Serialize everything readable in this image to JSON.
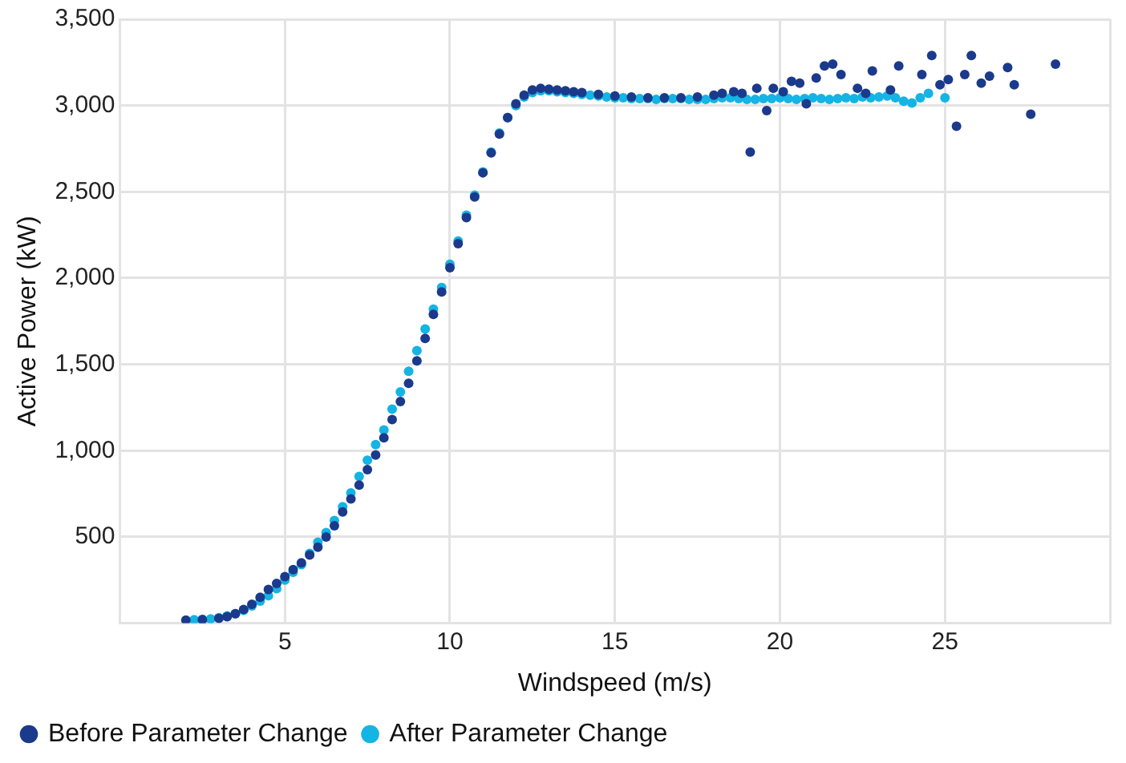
{
  "chart_data": {
    "type": "scatter",
    "xlabel": "Windspeed (m/s)",
    "ylabel": "Active Power (kW)",
    "xlim": [
      0,
      30
    ],
    "xticks": [
      {
        "value": 0,
        "label": null
      },
      5,
      10,
      15,
      20,
      25,
      {
        "value": 30,
        "label": null
      }
    ],
    "ylim": [
      0,
      3500
    ],
    "yticks": [
      {
        "value": 0,
        "label": null
      },
      {
        "value": 500,
        "label": "500"
      },
      {
        "value": 1000,
        "label": "1,000"
      },
      {
        "value": 1500,
        "label": "1,500"
      },
      {
        "value": 2000,
        "label": "2,000"
      },
      {
        "value": 2500,
        "label": "2,500"
      },
      {
        "value": 3000,
        "label": "3,000"
      },
      {
        "value": 3500,
        "label": "3,500"
      }
    ],
    "grid": true,
    "legend": "bottom left",
    "marker": "circle",
    "series": [
      {
        "name": "Before Parameter Change",
        "color": "#1b3a8c",
        "x": [
          2.0,
          2.5,
          3.0,
          3.25,
          3.5,
          3.75,
          4.0,
          4.25,
          4.5,
          4.75,
          5.0,
          5.25,
          5.5,
          5.75,
          6.0,
          6.25,
          6.5,
          6.75,
          7.0,
          7.25,
          7.5,
          7.75,
          8.0,
          8.25,
          8.5,
          8.75,
          9.0,
          9.25,
          9.5,
          9.75,
          10.0,
          10.25,
          10.5,
          10.75,
          11.0,
          11.25,
          11.5,
          11.75,
          12.0,
          12.25,
          12.5,
          12.75,
          13.0,
          13.25,
          13.5,
          13.75,
          14.0,
          14.5,
          15.0,
          15.5,
          16.0,
          16.5,
          17.0,
          17.5,
          18.0,
          18.25,
          18.6,
          18.85,
          19.1,
          19.3,
          19.6,
          19.8,
          20.1,
          20.35,
          20.6,
          20.8,
          21.1,
          21.35,
          21.6,
          21.85,
          22.35,
          22.6,
          22.8,
          23.35,
          23.6,
          24.3,
          24.6,
          24.85,
          25.1,
          25.35,
          25.6,
          25.8,
          26.1,
          26.35,
          26.9,
          27.1,
          27.6,
          28.35
        ],
        "values": [
          18,
          20,
          28,
          38,
          55,
          80,
          110,
          150,
          195,
          230,
          270,
          310,
          350,
          395,
          440,
          500,
          565,
          645,
          720,
          800,
          890,
          975,
          1075,
          1180,
          1285,
          1390,
          1520,
          1650,
          1790,
          1920,
          2060,
          2200,
          2350,
          2470,
          2610,
          2725,
          2835,
          2930,
          3010,
          3060,
          3090,
          3100,
          3095,
          3090,
          3085,
          3080,
          3075,
          3065,
          3055,
          3050,
          3045,
          3045,
          3045,
          3050,
          3060,
          3070,
          3080,
          3070,
          2730,
          3100,
          2970,
          3100,
          3080,
          3140,
          3130,
          3010,
          3160,
          3230,
          3240,
          3180,
          3100,
          3070,
          3200,
          3090,
          3230,
          3180,
          3290,
          3120,
          3150,
          2880,
          3180,
          3290,
          3130,
          3170,
          3220,
          3120,
          2950,
          3240
        ]
      },
      {
        "name": "After Parameter Change",
        "color": "#14b4e4",
        "x": [
          2.25,
          2.5,
          2.75,
          3.0,
          3.25,
          3.5,
          3.75,
          4.0,
          4.25,
          4.5,
          4.75,
          5.0,
          5.25,
          5.5,
          5.75,
          6.0,
          6.25,
          6.5,
          6.75,
          7.0,
          7.25,
          7.5,
          7.75,
          8.0,
          8.25,
          8.5,
          8.75,
          9.0,
          9.25,
          9.5,
          9.75,
          10.0,
          10.25,
          10.5,
          10.75,
          11.0,
          11.25,
          11.5,
          11.75,
          12.0,
          12.25,
          12.5,
          12.75,
          13.0,
          13.25,
          13.5,
          13.75,
          14.0,
          14.25,
          14.5,
          14.75,
          15.0,
          15.25,
          15.5,
          15.75,
          16.0,
          16.25,
          16.5,
          16.75,
          17.0,
          17.25,
          17.5,
          17.75,
          18.0,
          18.25,
          18.5,
          18.75,
          19.0,
          19.25,
          19.5,
          19.75,
          20.0,
          20.25,
          20.5,
          20.75,
          21.0,
          21.25,
          21.5,
          21.75,
          22.0,
          22.25,
          22.5,
          22.75,
          23.0,
          23.25,
          23.5,
          23.75,
          24.0,
          24.25,
          24.5,
          25.0
        ],
        "values": [
          20,
          22,
          25,
          32,
          42,
          55,
          75,
          100,
          128,
          160,
          200,
          250,
          295,
          340,
          405,
          470,
          525,
          595,
          675,
          755,
          850,
          945,
          1035,
          1120,
          1240,
          1340,
          1460,
          1580,
          1705,
          1820,
          1945,
          2080,
          2215,
          2365,
          2480,
          2615,
          2730,
          2840,
          2930,
          3000,
          3050,
          3075,
          3085,
          3085,
          3080,
          3075,
          3070,
          3065,
          3060,
          3055,
          3050,
          3045,
          3045,
          3040,
          3040,
          3040,
          3035,
          3040,
          3040,
          3040,
          3035,
          3035,
          3035,
          3040,
          3045,
          3045,
          3040,
          3035,
          3035,
          3040,
          3040,
          3045,
          3040,
          3035,
          3040,
          3045,
          3040,
          3035,
          3040,
          3045,
          3040,
          3050,
          3045,
          3050,
          3055,
          3045,
          3025,
          3015,
          3045,
          3070,
          3045
        ]
      }
    ]
  }
}
